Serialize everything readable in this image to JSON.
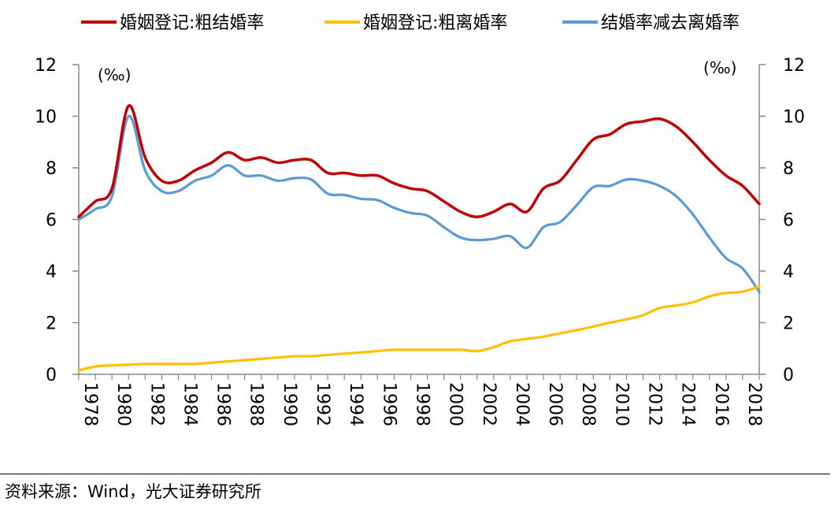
{
  "chart_data": {
    "type": "line",
    "title": "",
    "xlabel": "",
    "ylabel": "",
    "y_unit_left": "(‰)",
    "y_unit_right": "(‰)",
    "ylim": [
      0,
      12
    ],
    "yticks": [
      "0",
      "2",
      "4",
      "6",
      "8",
      "10",
      "12"
    ],
    "xticks": [
      "1978",
      "1980",
      "1982",
      "1984",
      "1986",
      "1988",
      "1990",
      "1992",
      "1994",
      "1996",
      "1998",
      "2000",
      "2002",
      "2004",
      "2006",
      "2008",
      "2010",
      "2012",
      "2014",
      "2016",
      "2018"
    ],
    "x": [
      1978,
      1979,
      1980,
      1981,
      1982,
      1983,
      1984,
      1985,
      1986,
      1987,
      1988,
      1989,
      1990,
      1991,
      1992,
      1993,
      1994,
      1995,
      1996,
      1997,
      1998,
      1999,
      2000,
      2001,
      2002,
      2003,
      2004,
      2005,
      2006,
      2007,
      2008,
      2009,
      2010,
      2011,
      2012,
      2013,
      2014,
      2015,
      2016,
      2017,
      2018,
      2019
    ],
    "legend_position": "top",
    "series": [
      {
        "name": "婚姻登记:粗结婚率",
        "color": "#c00000",
        "values": [
          6.1,
          6.7,
          7.2,
          10.4,
          8.4,
          7.5,
          7.5,
          7.9,
          8.2,
          8.6,
          8.3,
          8.4,
          8.2,
          8.3,
          8.3,
          7.8,
          7.8,
          7.7,
          7.7,
          7.4,
          7.2,
          7.1,
          6.7,
          6.3,
          6.1,
          6.3,
          6.6,
          6.3,
          7.2,
          7.5,
          8.3,
          9.1,
          9.3,
          9.7,
          9.8,
          9.9,
          9.6,
          9.0,
          8.3,
          7.7,
          7.3,
          6.6
        ]
      },
      {
        "name": "婚姻登记:粗离婚率",
        "color": "#ffc000",
        "values": [
          0.15,
          0.3,
          0.35,
          0.37,
          0.4,
          0.4,
          0.4,
          0.4,
          0.45,
          0.5,
          0.55,
          0.6,
          0.65,
          0.7,
          0.7,
          0.75,
          0.8,
          0.85,
          0.9,
          0.95,
          0.95,
          0.95,
          0.95,
          0.95,
          0.9,
          1.05,
          1.28,
          1.37,
          1.46,
          1.59,
          1.71,
          1.85,
          2.0,
          2.13,
          2.29,
          2.57,
          2.67,
          2.79,
          3.02,
          3.15,
          3.2,
          3.4
        ]
      },
      {
        "name": "结婚率减去离婚率",
        "color": "#5b9bd5",
        "values": [
          6.0,
          6.4,
          6.9,
          10.0,
          7.9,
          7.1,
          7.1,
          7.5,
          7.7,
          8.1,
          7.7,
          7.7,
          7.5,
          7.6,
          7.55,
          7.0,
          6.95,
          6.8,
          6.75,
          6.45,
          6.25,
          6.15,
          5.7,
          5.3,
          5.2,
          5.25,
          5.35,
          4.9,
          5.7,
          5.9,
          6.55,
          7.25,
          7.3,
          7.55,
          7.5,
          7.3,
          6.9,
          6.2,
          5.3,
          4.5,
          4.1,
          3.2
        ]
      }
    ]
  },
  "source": "资料来源：Wind，光大证券研究所"
}
